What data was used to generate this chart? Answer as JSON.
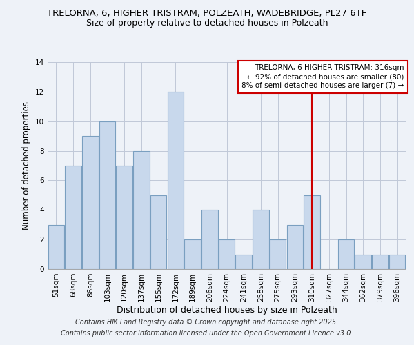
{
  "title1": "TRELORNA, 6, HIGHER TRISTRAM, POLZEATH, WADEBRIDGE, PL27 6TF",
  "title2": "Size of property relative to detached houses in Polzeath",
  "xlabel": "Distribution of detached houses by size in Polzeath",
  "ylabel": "Number of detached properties",
  "categories": [
    "51sqm",
    "68sqm",
    "86sqm",
    "103sqm",
    "120sqm",
    "137sqm",
    "155sqm",
    "172sqm",
    "189sqm",
    "206sqm",
    "224sqm",
    "241sqm",
    "258sqm",
    "275sqm",
    "293sqm",
    "310sqm",
    "327sqm",
    "344sqm",
    "362sqm",
    "379sqm",
    "396sqm"
  ],
  "values": [
    3,
    7,
    9,
    10,
    7,
    8,
    5,
    12,
    2,
    4,
    2,
    1,
    4,
    2,
    3,
    5,
    0,
    2,
    1,
    1,
    1
  ],
  "bar_color": "#c8d8ec",
  "bar_edge_color": "#7a9fc0",
  "vline_color": "#cc0000",
  "vline_x": 15,
  "annotation_title": "TRELORNA, 6 HIGHER TRISTRAM: 316sqm",
  "annotation_line1": "← 92% of detached houses are smaller (80)",
  "annotation_line2": "8% of semi-detached houses are larger (7) →",
  "ylim": [
    0,
    14
  ],
  "yticks": [
    0,
    2,
    4,
    6,
    8,
    10,
    12,
    14
  ],
  "bg_color": "#eef2f8",
  "plot_bg_color": "#eef2f8",
  "footer1": "Contains HM Land Registry data © Crown copyright and database right 2025.",
  "footer2": "Contains public sector information licensed under the Open Government Licence v3.0.",
  "annotation_box_color": "#ffffff",
  "annotation_border_color": "#cc0000",
  "title_fontsize": 9.5,
  "subtitle_fontsize": 9,
  "ylabel_fontsize": 8.5,
  "xlabel_fontsize": 9,
  "tick_fontsize": 7.5,
  "annotation_fontsize": 7.5,
  "footer_fontsize": 7
}
